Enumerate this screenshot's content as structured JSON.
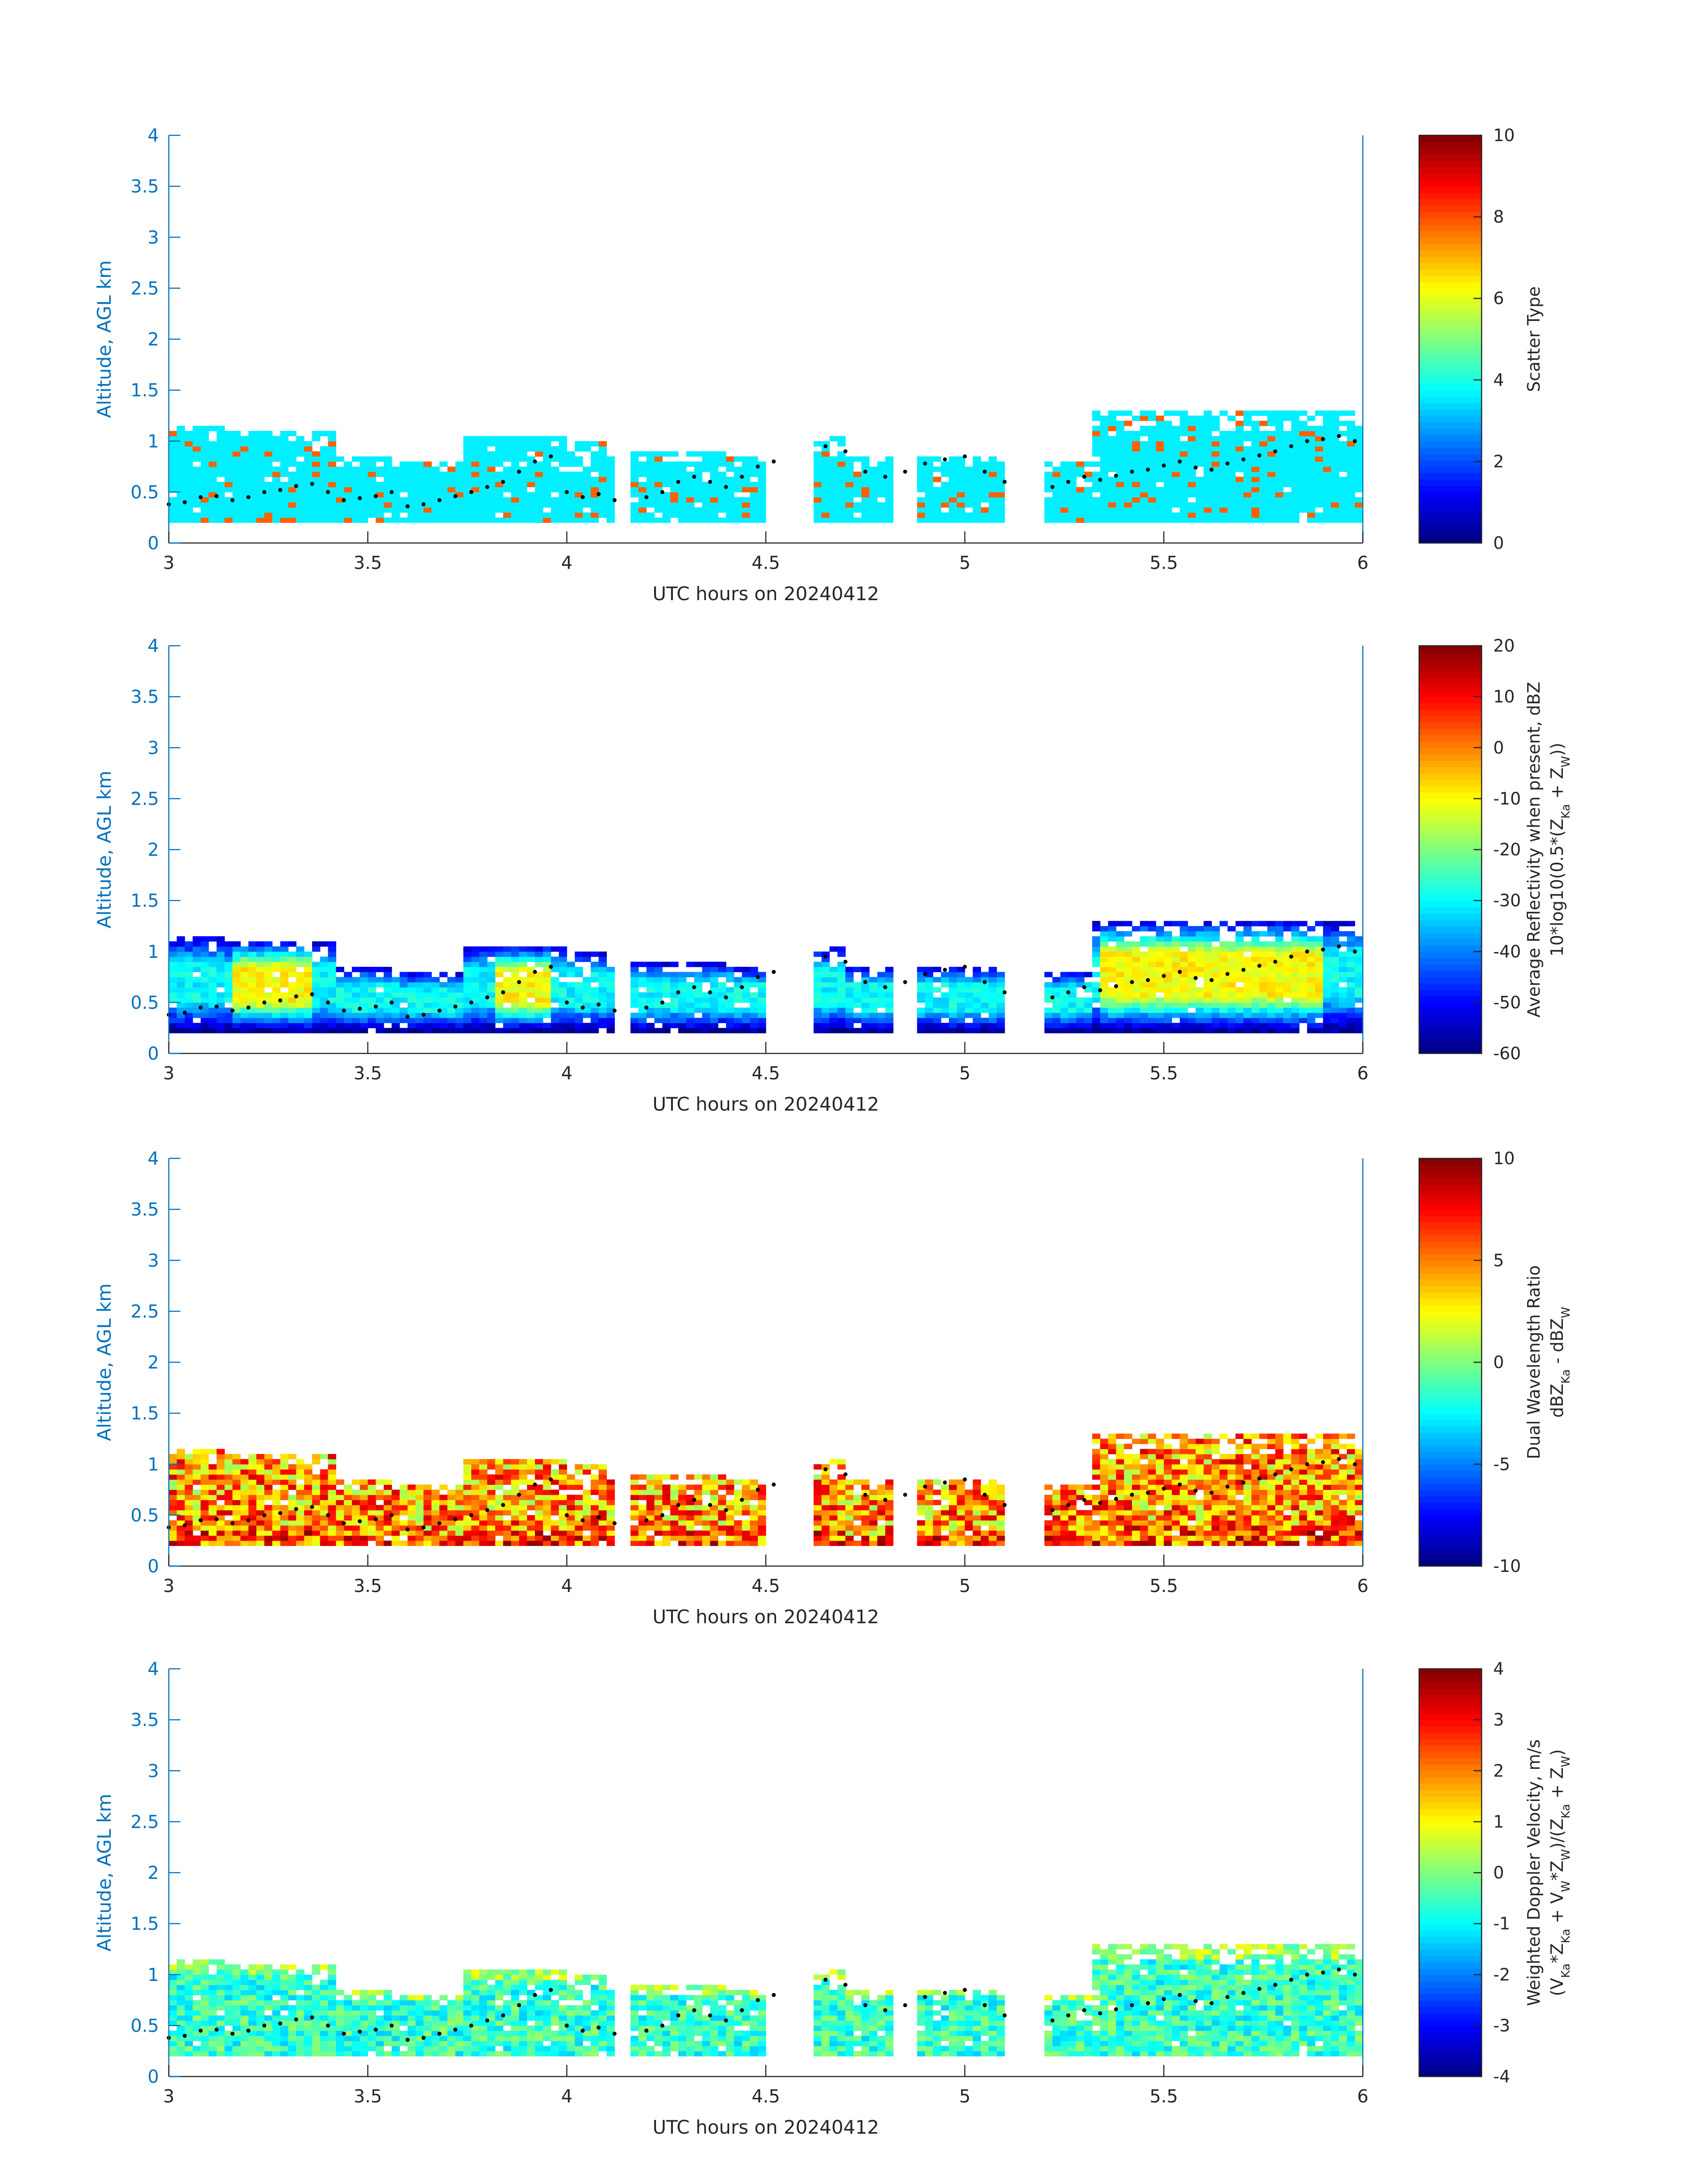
{
  "chart_data": [
    {
      "type": "heatmap",
      "xlabel": "UTC hours on 20240412",
      "ylabel": "Altitude, AGL km",
      "xlim": [
        3,
        6
      ],
      "ylim": [
        0,
        4
      ],
      "xticks": [
        "3",
        "3.5",
        "4",
        "4.5",
        "5",
        "5.5",
        "6"
      ],
      "yticks": [
        "0",
        "0.5",
        "1",
        "1.5",
        "2",
        "2.5",
        "3",
        "3.5",
        "4"
      ],
      "colorbar": {
        "label_lines": [
          "Scatter Type"
        ],
        "range": [
          0,
          10
        ],
        "ticks": [
          "0",
          "2",
          "4",
          "6",
          "8",
          "10"
        ],
        "colormap": "jet"
      },
      "field": "scatter_type",
      "dominant_value": 3.6,
      "secondary_value": 7.8
    },
    {
      "type": "heatmap",
      "xlabel": "UTC hours on 20240412",
      "ylabel": "Altitude, AGL km",
      "xlim": [
        3,
        6
      ],
      "ylim": [
        0,
        4
      ],
      "xticks": [
        "3",
        "3.5",
        "4",
        "4.5",
        "5",
        "5.5",
        "6"
      ],
      "yticks": [
        "0",
        "0.5",
        "1",
        "1.5",
        "2",
        "2.5",
        "3",
        "3.5",
        "4"
      ],
      "colorbar": {
        "label_lines": [
          "Average Reflectivity when present, dBZ",
          "10*log10(0.5*(Z",
          "Ka",
          " + Z",
          "W",
          "))"
        ],
        "range": [
          -60,
          20
        ],
        "ticks": [
          "-60",
          "-50",
          "-40",
          "-30",
          "-20",
          "-10",
          "0",
          "10",
          "20"
        ],
        "colormap": "jet"
      },
      "field": "reflectivity_dBZ",
      "edge_value": -58,
      "core_value": -10
    },
    {
      "type": "heatmap",
      "xlabel": "UTC hours on 20240412",
      "ylabel": "Altitude, AGL km",
      "xlim": [
        3,
        6
      ],
      "ylim": [
        0,
        4
      ],
      "xticks": [
        "3",
        "3.5",
        "4",
        "4.5",
        "5",
        "5.5",
        "6"
      ],
      "yticks": [
        "0",
        "0.5",
        "1",
        "1.5",
        "2",
        "2.5",
        "3",
        "3.5",
        "4"
      ],
      "colorbar": {
        "label_lines": [
          "Dual Wavelength Ratio",
          "dBZ",
          "Ka",
          " - dBZ",
          "W"
        ],
        "range": [
          -10,
          10
        ],
        "ticks": [
          "-10",
          "-5",
          "0",
          "5",
          "10"
        ],
        "colormap": "jet"
      },
      "field": "dual_wavelength_ratio",
      "typical_value": 4.5
    },
    {
      "type": "heatmap",
      "xlabel": "UTC hours on 20240412",
      "ylabel": "Altitude, AGL km",
      "xlim": [
        3,
        6
      ],
      "ylim": [
        0,
        4
      ],
      "xticks": [
        "3",
        "3.5",
        "4",
        "4.5",
        "5",
        "5.5",
        "6"
      ],
      "yticks": [
        "0",
        "0.5",
        "1",
        "1.5",
        "2",
        "2.5",
        "3",
        "3.5",
        "4"
      ],
      "colorbar": {
        "label_lines": [
          "Weighted Doppler Velocity, m/s",
          "(V",
          "Ka",
          "*Z",
          "Ka",
          " + V",
          "W",
          "*Z",
          "W",
          ")/(Z",
          "Ka",
          " + Z",
          "W",
          ")"
        ],
        "range": [
          -4,
          4
        ],
        "ticks": [
          "-4",
          "-3",
          "-2",
          "-1",
          "0",
          "1",
          "2",
          "3",
          "4"
        ],
        "colormap": "jet"
      },
      "field": "doppler_velocity_ms",
      "typical_value": -0.6
    }
  ],
  "cloud_profile": {
    "segments": [
      {
        "x_start": 3.0,
        "x_end": 3.15,
        "top_km": 1.15
      },
      {
        "x_start": 3.15,
        "x_end": 3.42,
        "top_km": 1.1
      },
      {
        "x_start": 3.42,
        "x_end": 3.58,
        "top_km": 0.85
      },
      {
        "x_start": 3.58,
        "x_end": 3.75,
        "top_km": 0.8
      },
      {
        "x_start": 3.75,
        "x_end": 4.0,
        "top_km": 1.05
      },
      {
        "x_start": 4.0,
        "x_end": 4.13,
        "top_km": 1.0
      },
      {
        "x_start": 4.16,
        "x_end": 4.42,
        "top_km": 0.9
      },
      {
        "x_start": 4.43,
        "x_end": 4.5,
        "top_km": 0.85
      },
      {
        "x_start": 4.63,
        "x_end": 4.7,
        "top_km": 1.05
      },
      {
        "x_start": 4.7,
        "x_end": 4.83,
        "top_km": 0.85
      },
      {
        "x_start": 4.88,
        "x_end": 5.0,
        "top_km": 0.85
      },
      {
        "x_start": 5.0,
        "x_end": 5.1,
        "top_km": 0.85
      },
      {
        "x_start": 5.2,
        "x_end": 5.33,
        "top_km": 0.8
      },
      {
        "x_start": 5.33,
        "x_end": 5.7,
        "top_km": 1.3
      },
      {
        "x_start": 5.7,
        "x_end": 6.0,
        "top_km": 1.3
      }
    ],
    "base_km": 0.2,
    "dots": [
      [
        3.0,
        0.38
      ],
      [
        3.04,
        0.4
      ],
      [
        3.08,
        0.45
      ],
      [
        3.12,
        0.46
      ],
      [
        3.16,
        0.42
      ],
      [
        3.2,
        0.45
      ],
      [
        3.24,
        0.5
      ],
      [
        3.28,
        0.52
      ],
      [
        3.32,
        0.56
      ],
      [
        3.36,
        0.58
      ],
      [
        3.4,
        0.5
      ],
      [
        3.44,
        0.42
      ],
      [
        3.48,
        0.44
      ],
      [
        3.52,
        0.46
      ],
      [
        3.56,
        0.5
      ],
      [
        3.6,
        0.36
      ],
      [
        3.64,
        0.38
      ],
      [
        3.68,
        0.42
      ],
      [
        3.72,
        0.46
      ],
      [
        3.76,
        0.5
      ],
      [
        3.8,
        0.55
      ],
      [
        3.84,
        0.6
      ],
      [
        3.88,
        0.7
      ],
      [
        3.92,
        0.8
      ],
      [
        3.96,
        0.85
      ],
      [
        4.0,
        0.5
      ],
      [
        4.04,
        0.45
      ],
      [
        4.08,
        0.48
      ],
      [
        4.12,
        0.42
      ],
      [
        4.2,
        0.45
      ],
      [
        4.24,
        0.5
      ],
      [
        4.28,
        0.6
      ],
      [
        4.32,
        0.65
      ],
      [
        4.36,
        0.6
      ],
      [
        4.4,
        0.55
      ],
      [
        4.44,
        0.65
      ],
      [
        4.48,
        0.75
      ],
      [
        4.52,
        0.8
      ],
      [
        4.65,
        0.95
      ],
      [
        4.7,
        0.9
      ],
      [
        4.75,
        0.7
      ],
      [
        4.8,
        0.65
      ],
      [
        4.85,
        0.7
      ],
      [
        4.9,
        0.78
      ],
      [
        4.95,
        0.82
      ],
      [
        5.0,
        0.85
      ],
      [
        5.05,
        0.7
      ],
      [
        5.1,
        0.6
      ],
      [
        5.22,
        0.55
      ],
      [
        5.26,
        0.6
      ],
      [
        5.3,
        0.65
      ],
      [
        5.34,
        0.62
      ],
      [
        5.38,
        0.66
      ],
      [
        5.42,
        0.7
      ],
      [
        5.46,
        0.72
      ],
      [
        5.5,
        0.76
      ],
      [
        5.54,
        0.8
      ],
      [
        5.58,
        0.74
      ],
      [
        5.62,
        0.72
      ],
      [
        5.66,
        0.78
      ],
      [
        5.7,
        0.82
      ],
      [
        5.74,
        0.86
      ],
      [
        5.78,
        0.9
      ],
      [
        5.82,
        0.95
      ],
      [
        5.86,
        1.0
      ],
      [
        5.9,
        1.02
      ],
      [
        5.94,
        1.05
      ],
      [
        5.98,
        1.0
      ]
    ]
  }
}
